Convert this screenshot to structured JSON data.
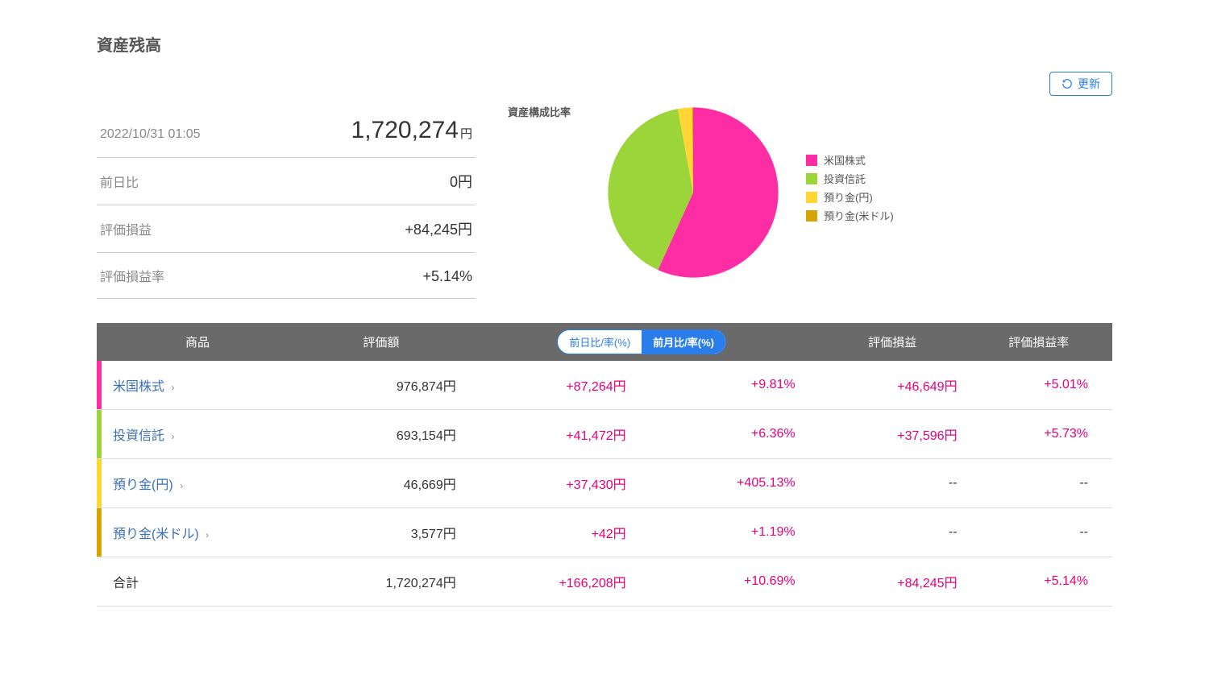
{
  "title": "資産残高",
  "refresh_label": "更新",
  "summary": {
    "timestamp": "2022/10/31 01:05",
    "total_value": "1,720,274",
    "total_unit": "円",
    "prev_day": {
      "label": "前日比",
      "value": "0円"
    },
    "pl": {
      "label": "評価損益",
      "value": "+84,245円"
    },
    "pl_rate": {
      "label": "評価損益率",
      "value": "+5.14%"
    }
  },
  "chart": {
    "title": "資産構成比率",
    "type": "pie",
    "background_color": "#ffffff",
    "slices": [
      {
        "label": "米国株式",
        "value": 976874,
        "pct": 56.8,
        "color": "#ff2da3"
      },
      {
        "label": "投資信託",
        "value": 693154,
        "pct": 40.3,
        "color": "#9bd53a"
      },
      {
        "label": "預り金(円)",
        "value": 46669,
        "pct": 2.7,
        "color": "#ffd633"
      },
      {
        "label": "預り金(米ドル)",
        "value": 3577,
        "pct": 0.2,
        "color": "#d4a500"
      }
    ]
  },
  "table": {
    "headers": {
      "product": "商品",
      "valuation": "評価額",
      "toggle_prev_day": "前日比/率(%)",
      "toggle_prev_month": "前月比/率(%)",
      "pl": "評価損益",
      "pl_rate": "評価損益率"
    },
    "rows": [
      {
        "color": "#ff2da3",
        "name": "米国株式",
        "valuation": "976,874円",
        "change_amt": "+87,264円",
        "change_pct": "+9.81%",
        "pl": "+46,649円",
        "pl_rate": "+5.01%",
        "change_pos": true,
        "pl_pos": true
      },
      {
        "color": "#9bd53a",
        "name": "投資信託",
        "valuation": "693,154円",
        "change_amt": "+41,472円",
        "change_pct": "+6.36%",
        "pl": "+37,596円",
        "pl_rate": "+5.73%",
        "change_pos": true,
        "pl_pos": true
      },
      {
        "color": "#ffd633",
        "name": "預り金(円)",
        "valuation": "46,669円",
        "change_amt": "+37,430円",
        "change_pct": "+405.13%",
        "pl": "--",
        "pl_rate": "--",
        "change_pos": true,
        "pl_pos": false
      },
      {
        "color": "#d4a500",
        "name": "預り金(米ドル)",
        "valuation": "3,577円",
        "change_amt": "+42円",
        "change_pct": "+1.19%",
        "pl": "--",
        "pl_rate": "--",
        "change_pos": true,
        "pl_pos": false
      }
    ],
    "total": {
      "label": "合計",
      "valuation": "1,720,274円",
      "change_amt": "+166,208円",
      "change_pct": "+10.69%",
      "pl": "+84,245円",
      "pl_rate": "+5.14%"
    }
  }
}
